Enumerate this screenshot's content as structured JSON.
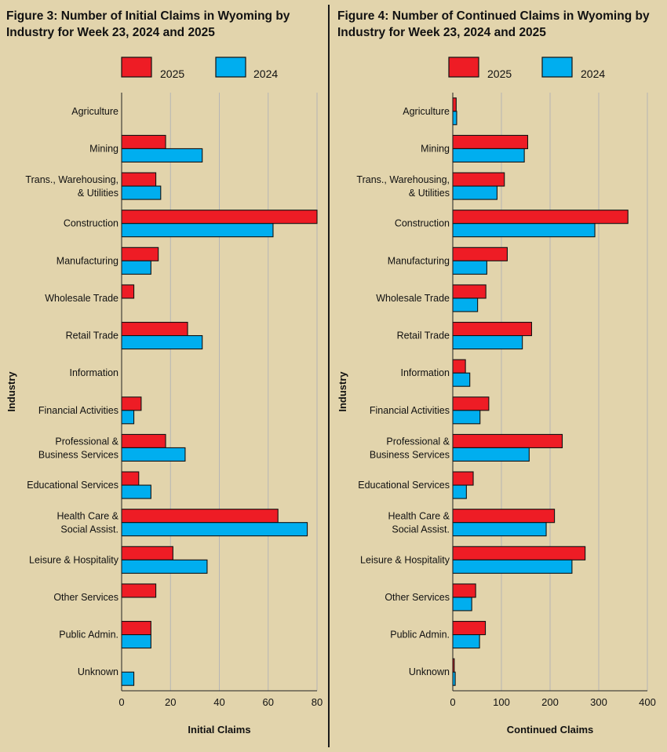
{
  "chart_data": [
    {
      "type": "bar",
      "orientation": "horizontal",
      "title": "Figure 3: Number of Initial Claims in Wyoming by Industry for Week 23, 2024 and 2025",
      "title_lines": [
        "Figure 3: Number of Initial Claims in Wyoming by",
        "Industry for Week 23, 2024 and 2025"
      ],
      "xlabel": "Initial Claims",
      "ylabel": "Industry",
      "xlim": [
        0,
        80
      ],
      "xticks": [
        0,
        20,
        40,
        60,
        80
      ],
      "grid": true,
      "legend_position": "top",
      "categories": [
        [
          "Agriculture"
        ],
        [
          "Mining"
        ],
        [
          "Trans., Warehousing,",
          "& Utilities"
        ],
        [
          "Construction"
        ],
        [
          "Manufacturing"
        ],
        [
          "Wholesale Trade"
        ],
        [
          "Retail Trade"
        ],
        [
          "Information"
        ],
        [
          "Financial Activities"
        ],
        [
          "Professional &",
          "Business Services"
        ],
        [
          "Educational Services"
        ],
        [
          "Health Care &",
          "Social Assist."
        ],
        [
          "Leisure & Hospitality"
        ],
        [
          "Other Services"
        ],
        [
          "Public Admin."
        ],
        [
          "Unknown"
        ]
      ],
      "series": [
        {
          "name": "2025",
          "color": "#ee1c25",
          "values": [
            0,
            18,
            14,
            80,
            15,
            5,
            27,
            0,
            8,
            18,
            7,
            64,
            21,
            14,
            12,
            0
          ]
        },
        {
          "name": "2024",
          "color": "#00aeef",
          "values": [
            0,
            33,
            16,
            62,
            12,
            0,
            33,
            0,
            5,
            26,
            12,
            76,
            35,
            0,
            12,
            5
          ]
        }
      ]
    },
    {
      "type": "bar",
      "orientation": "horizontal",
      "title": "Figure 4: Number of Continued Claims in Wyoming by Industry for Week 23, 2024 and 2025",
      "title_lines": [
        "Figure 4: Number of Continued Claims in Wyoming by",
        "Industry for Week 23, 2024 and 2025"
      ],
      "xlabel": "Continued Claims",
      "ylabel": "Industry",
      "xlim": [
        0,
        400
      ],
      "xticks": [
        0,
        100,
        200,
        300,
        400
      ],
      "grid": true,
      "legend_position": "top",
      "categories": [
        [
          "Agriculture"
        ],
        [
          "Mining"
        ],
        [
          "Trans., Warehousing,",
          "& Utilities"
        ],
        [
          "Construction"
        ],
        [
          "Manufacturing"
        ],
        [
          "Wholesale Trade"
        ],
        [
          "Retail Trade"
        ],
        [
          "Information"
        ],
        [
          "Financial Activities"
        ],
        [
          "Professional &",
          "Business Services"
        ],
        [
          "Educational Services"
        ],
        [
          "Health Care &",
          "Social Assist."
        ],
        [
          "Leisure & Hospitality"
        ],
        [
          "Other Services"
        ],
        [
          "Public Admin."
        ],
        [
          "Unknown"
        ]
      ],
      "series": [
        {
          "name": "2025",
          "color": "#ee1c25",
          "values": [
            7,
            154,
            106,
            360,
            112,
            68,
            162,
            26,
            74,
            225,
            42,
            209,
            272,
            47,
            67,
            3
          ]
        },
        {
          "name": "2024",
          "color": "#00aeef",
          "values": [
            8,
            147,
            91,
            292,
            70,
            51,
            143,
            35,
            56,
            157,
            28,
            192,
            245,
            39,
            55,
            5
          ]
        }
      ]
    }
  ],
  "colors": {
    "background": "#e2d4ac",
    "bar_2025": "#ee1c25",
    "bar_2024": "#00aeef",
    "grid": "#b5b5b5",
    "axis": "#222222",
    "divider": "#1a1a1a"
  }
}
